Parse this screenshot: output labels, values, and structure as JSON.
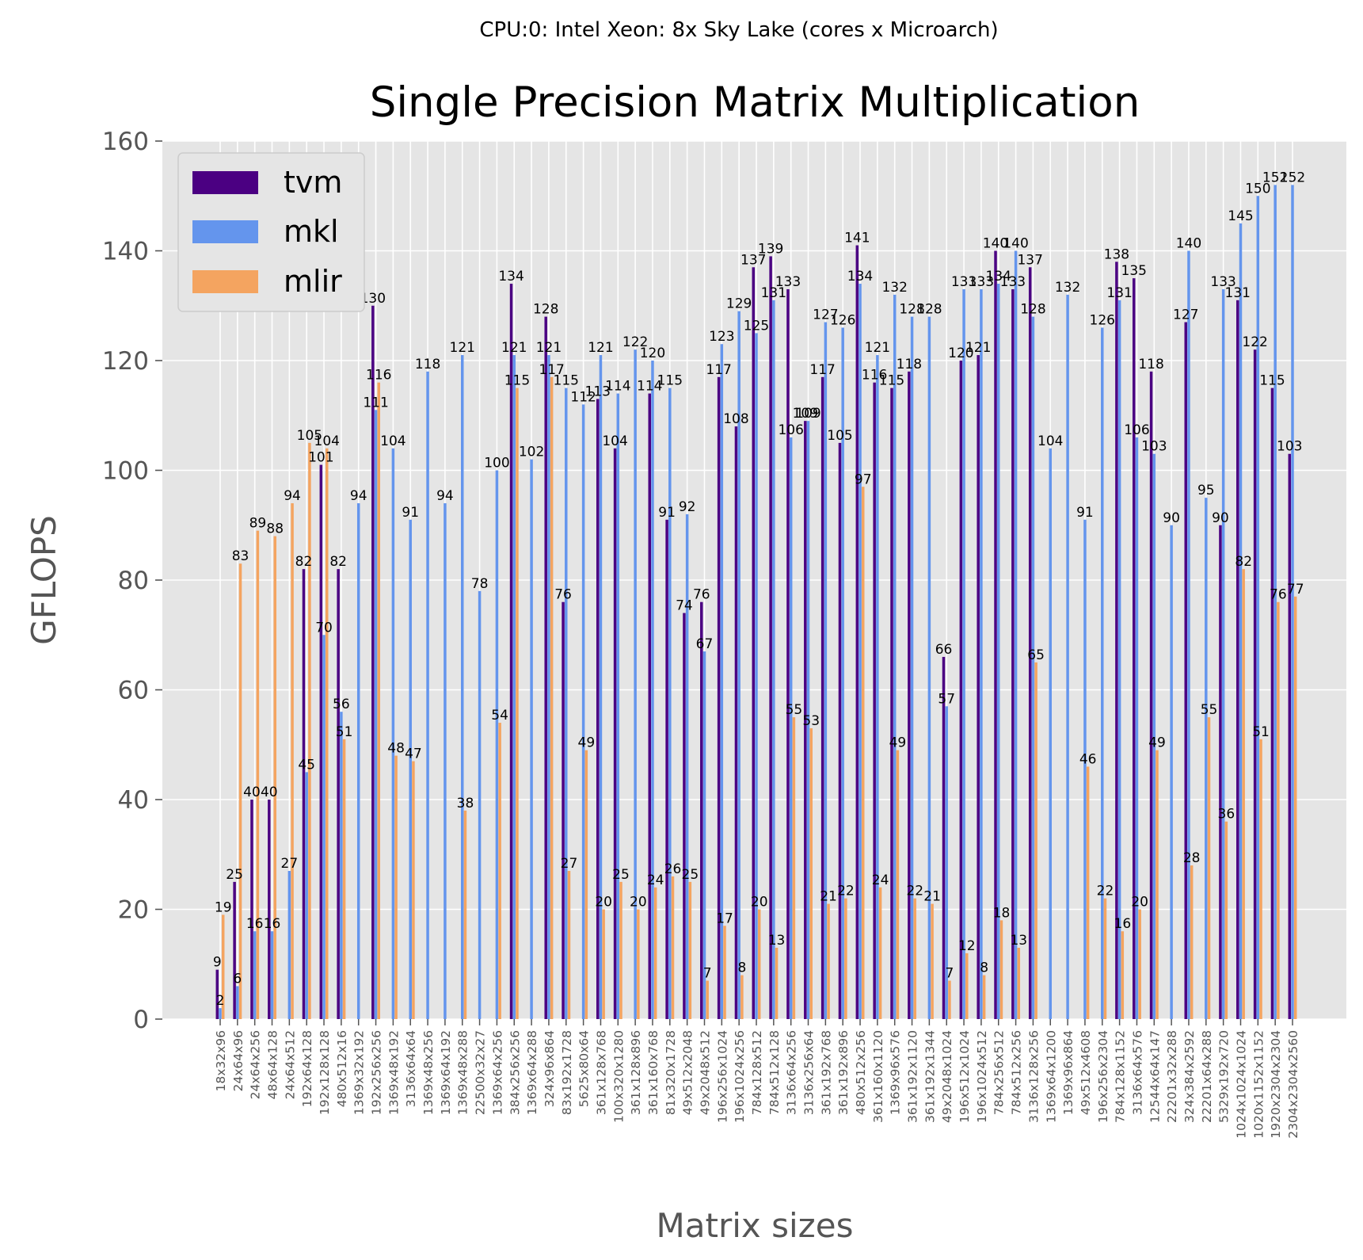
{
  "chart_data": {
    "type": "bar",
    "suptitle": "CPU:0: Intel Xeon: 8x Sky Lake (cores x Microarch)",
    "title": "Single Precision Matrix Multiplication",
    "xlabel": "Matrix sizes",
    "ylabel": "GFLOPS",
    "ylim": [
      0,
      160
    ],
    "yticks": [
      0,
      20,
      40,
      60,
      80,
      100,
      120,
      140,
      160
    ],
    "grid": true,
    "legend_position": "top-left",
    "categories": [
      "18x32x96",
      "24x64x96",
      "24x64x256",
      "48x64x128",
      "24x64x512",
      "192x64x128",
      "192x128x128",
      "480x512x16",
      "1369x32x192",
      "192x256x256",
      "1369x48x192",
      "3136x64x64",
      "1369x48x256",
      "1369x64x192",
      "1369x48x288",
      "22500x32x27",
      "1369x64x256",
      "384x256x256",
      "1369x64x288",
      "324x96x864",
      "83x192x1728",
      "5625x80x64",
      "361x128x768",
      "100x320x1280",
      "361x128x896",
      "361x160x768",
      "81x320x1728",
      "49x512x2048",
      "49x2048x512",
      "196x256x1024",
      "196x1024x256",
      "784x128x512",
      "784x512x128",
      "3136x64x256",
      "3136x256x64",
      "361x192x768",
      "361x192x896",
      "480x512x256",
      "361x160x1120",
      "1369x96x576",
      "361x192x1120",
      "361x192x1344",
      "49x2048x1024",
      "196x512x1024",
      "196x1024x512",
      "784x256x512",
      "784x512x256",
      "3136x128x256",
      "1369x64x1200",
      "1369x96x864",
      "49x512x4608",
      "196x256x2304",
      "784x128x1152",
      "3136x64x576",
      "12544x64x147",
      "22201x32x288",
      "324x384x2592",
      "22201x64x288",
      "5329x192x720",
      "1024x1024x1024",
      "1020x1152x1152",
      "1920x2304x2304",
      "2304x2304x2560"
    ],
    "series": [
      {
        "name": "tvm",
        "color": "#4b0082",
        "values": [
          9,
          25,
          40,
          40,
          0,
          82,
          101,
          82,
          0,
          130,
          0,
          0,
          0,
          0,
          0,
          0,
          0,
          134,
          0,
          128,
          76,
          0,
          113,
          104,
          0,
          114,
          91,
          74,
          76,
          117,
          108,
          137,
          139,
          133,
          109,
          117,
          105,
          141,
          116,
          115,
          118,
          0,
          66,
          120,
          121,
          140,
          133,
          137,
          0,
          0,
          0,
          0,
          138,
          135,
          118,
          0,
          127,
          0,
          90,
          131,
          122,
          115,
          103
        ]
      },
      {
        "name": "mkl",
        "color": "#6495ed",
        "values": [
          2,
          6,
          16,
          16,
          27,
          45,
          70,
          56,
          94,
          111,
          104,
          91,
          118,
          94,
          121,
          78,
          100,
          121,
          102,
          121,
          115,
          112,
          121,
          114,
          122,
          120,
          115,
          92,
          67,
          123,
          129,
          125,
          131,
          106,
          109,
          127,
          126,
          134,
          121,
          132,
          128,
          128,
          57,
          133,
          133,
          134,
          140,
          128,
          104,
          132,
          91,
          126,
          131,
          106,
          103,
          90,
          140,
          95,
          133,
          145,
          150,
          152,
          152
        ]
      },
      {
        "name": "mlir",
        "color": "#f4a460",
        "values": [
          19,
          83,
          89,
          88,
          94,
          105,
          104,
          51,
          0,
          116,
          48,
          47,
          0,
          0,
          38,
          0,
          54,
          115,
          0,
          117,
          27,
          49,
          20,
          25,
          20,
          24,
          26,
          25,
          7,
          17,
          8,
          20,
          13,
          55,
          53,
          21,
          22,
          97,
          24,
          49,
          22,
          21,
          7,
          12,
          8,
          18,
          13,
          65,
          0,
          0,
          46,
          22,
          16,
          20,
          49,
          0,
          28,
          55,
          36,
          82,
          51,
          76,
          77
        ]
      }
    ]
  }
}
